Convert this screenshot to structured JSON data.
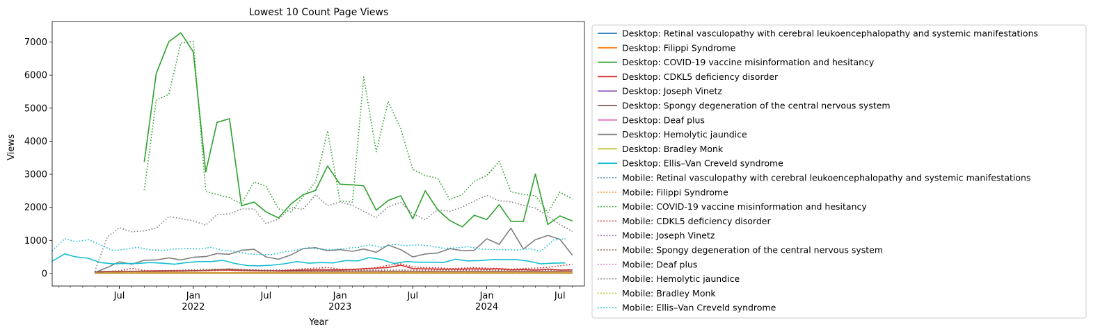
{
  "chart_data": {
    "type": "line",
    "title": "Lowest 10 Count Page Views",
    "xlabel": "Year",
    "ylabel": "Views",
    "ylim": [
      -380,
      7620
    ],
    "xlim": [
      "2021-01-15",
      "2024-08-31"
    ],
    "yticks": [
      0,
      1000,
      2000,
      3000,
      4000,
      5000,
      6000,
      7000
    ],
    "xticks": [
      {
        "date": "2021-07-01",
        "label": "Jul",
        "sub": ""
      },
      {
        "date": "2022-01-01",
        "label": "Jan",
        "sub": "2022"
      },
      {
        "date": "2022-07-01",
        "label": "Jul",
        "sub": ""
      },
      {
        "date": "2023-01-01",
        "label": "Jan",
        "sub": "2023"
      },
      {
        "date": "2023-07-01",
        "label": "Jul",
        "sub": ""
      },
      {
        "date": "2024-01-01",
        "label": "Jan",
        "sub": "2024"
      },
      {
        "date": "2024-07-01",
        "label": "Jul",
        "sub": ""
      }
    ],
    "grid": false,
    "legend_position": "outside-right",
    "series": [
      {
        "name": "Desktop: Retinal vasculopathy with cerebral leukoencephalopathy and systemic manifestations",
        "color": "#1f77b4",
        "style": "solid",
        "start": "2021-05-01",
        "values": [
          10,
          10,
          10,
          10,
          10,
          10,
          10,
          10,
          10,
          10,
          10,
          10,
          10,
          10,
          10,
          10,
          10,
          10,
          10,
          10,
          10,
          10,
          10,
          10,
          10,
          10,
          10,
          10,
          10,
          10,
          10,
          10,
          10,
          10,
          10,
          10,
          10,
          10,
          10,
          10
        ]
      },
      {
        "name": "Desktop: Filippi Syndrome",
        "color": "#ff7f0e",
        "style": "solid",
        "start": "2021-05-01",
        "values": [
          20,
          20,
          20,
          20,
          20,
          20,
          20,
          20,
          20,
          20,
          20,
          20,
          20,
          20,
          20,
          20,
          20,
          20,
          20,
          20,
          20,
          20,
          20,
          20,
          20,
          20,
          20,
          20,
          20,
          20,
          20,
          20,
          20,
          20,
          20,
          20,
          20,
          20,
          20,
          20
        ]
      },
      {
        "name": "Desktop: COVID-19 vaccine misinformation and hesitancy",
        "color": "#2ca02c",
        "style": "solid",
        "start": "2021-09-01",
        "values": [
          3370,
          6050,
          7010,
          7280,
          6700,
          3070,
          4570,
          4680,
          2050,
          2160,
          1860,
          1680,
          2100,
          2380,
          2510,
          3250,
          2700,
          2680,
          2650,
          1910,
          2210,
          2350,
          1650,
          2500,
          1930,
          1600,
          1410,
          1760,
          1630,
          2080,
          1580,
          1570,
          3010,
          1480,
          1740,
          1590
        ]
      },
      {
        "name": "Desktop: CDKL5 deficiency disorder",
        "color": "#d62728",
        "style": "solid",
        "start": "2021-05-01",
        "values": [
          50,
          60,
          60,
          60,
          70,
          80,
          80,
          80,
          80,
          90,
          100,
          100,
          90,
          80,
          80,
          80,
          90,
          100,
          110,
          110,
          110,
          120,
          140,
          160,
          180,
          250,
          150,
          140,
          130,
          130,
          130,
          140,
          130,
          140,
          110,
          120,
          100,
          130,
          100,
          110
        ]
      },
      {
        "name": "Desktop: Joseph Vinetz",
        "color": "#9467bd",
        "style": "solid",
        "start": "2021-05-01",
        "values": [
          10,
          10,
          10,
          10,
          10,
          10,
          10,
          10,
          10,
          10,
          10,
          10,
          10,
          10,
          10,
          10,
          10,
          10,
          10,
          10,
          10,
          10,
          10,
          10,
          10,
          10,
          10,
          10,
          10,
          10,
          10,
          10,
          10,
          10,
          10,
          10,
          10,
          10,
          10,
          10
        ]
      },
      {
        "name": "Desktop: Spongy degeneration of the central nervous system",
        "color": "#8c564b",
        "style": "solid",
        "start": "2021-05-01",
        "values": [
          40,
          50,
          50,
          60,
          60,
          60,
          70,
          70,
          80,
          90,
          110,
          120,
          100,
          90,
          80,
          70,
          70,
          70,
          70,
          70,
          70,
          70,
          70,
          70,
          60,
          60,
          60,
          60,
          60,
          60,
          60,
          60,
          60,
          60,
          60,
          60,
          60,
          60,
          60,
          60
        ]
      },
      {
        "name": "Desktop: Deaf plus",
        "color": "#e377c2",
        "style": "solid",
        "start": "2021-05-01",
        "values": [
          0,
          0,
          0,
          0,
          0,
          0,
          0,
          0,
          0,
          0,
          0,
          0,
          0,
          0,
          0,
          0,
          0,
          0,
          0,
          0,
          0,
          0,
          0,
          0,
          0,
          0,
          0,
          0,
          0,
          0,
          0,
          0,
          0,
          0,
          0,
          0,
          0,
          0,
          0,
          0
        ]
      },
      {
        "name": "Desktop: Hemolytic jaundice",
        "color": "#7f7f7f",
        "style": "solid",
        "start": "2021-05-01",
        "values": [
          30,
          180,
          350,
          280,
          400,
          410,
          470,
          410,
          490,
          510,
          600,
          580,
          700,
          730,
          500,
          430,
          560,
          750,
          780,
          690,
          720,
          670,
          740,
          640,
          860,
          720,
          500,
          590,
          620,
          750,
          690,
          700,
          1050,
          880,
          1370,
          740,
          1020,
          1150,
          1030,
          550
        ]
      },
      {
        "name": "Desktop: Bradley Monk",
        "color": "#bcbd22",
        "style": "solid",
        "start": "2021-05-01",
        "values": [
          10,
          10,
          10,
          10,
          10,
          10,
          10,
          10,
          10,
          10,
          10,
          10,
          10,
          10,
          10,
          10,
          10,
          10,
          10,
          10,
          10,
          10,
          10,
          10,
          10,
          10,
          10,
          10,
          10,
          10,
          10,
          10,
          10,
          10,
          10,
          10,
          10,
          10,
          10,
          10
        ]
      },
      {
        "name": "Desktop: Ellis–Van Creveld syndrome",
        "color": "#17becf",
        "style": "solid",
        "start": "2021-01-15",
        "values": [
          370,
          590,
          500,
          460,
          330,
          290,
          300,
          300,
          330,
          310,
          280,
          330,
          360,
          360,
          400,
          300,
          240,
          230,
          250,
          290,
          360,
          310,
          330,
          320,
          390,
          380,
          480,
          420,
          300,
          360,
          340,
          340,
          330,
          430,
          380,
          390,
          420,
          420,
          420,
          370,
          290,
          310,
          320
        ]
      },
      {
        "name": "Mobile: Retinal vasculopathy with cerebral leukoencephalopathy and systemic manifestations",
        "color": "#1f77b4",
        "style": "dotted",
        "start": "2021-05-01",
        "values": [
          20,
          20,
          20,
          20,
          20,
          20,
          20,
          20,
          20,
          20,
          20,
          20,
          20,
          20,
          20,
          20,
          20,
          20,
          20,
          20,
          20,
          20,
          20,
          20,
          20,
          20,
          20,
          20,
          20,
          20,
          20,
          20,
          20,
          20,
          20,
          20,
          20,
          20,
          20,
          20
        ]
      },
      {
        "name": "Mobile: Filippi Syndrome",
        "color": "#ff7f0e",
        "style": "dotted",
        "start": "2021-05-01",
        "values": [
          50,
          40,
          40,
          30,
          40,
          30,
          40,
          30,
          40,
          30,
          40,
          30,
          40,
          30,
          40,
          30,
          40,
          30,
          40,
          30,
          40,
          30,
          40,
          30,
          40,
          30,
          40,
          30,
          40,
          30,
          40,
          30,
          40,
          30,
          40,
          30,
          40,
          30,
          40,
          30
        ]
      },
      {
        "name": "Mobile: COVID-19 vaccine misinformation and hesitancy",
        "color": "#2ca02c",
        "style": "dotted",
        "start": "2021-09-01",
        "values": [
          2520,
          5240,
          5420,
          6970,
          7020,
          2480,
          2390,
          2290,
          2100,
          2770,
          2640,
          1950,
          1860,
          2320,
          2760,
          4310,
          2190,
          2160,
          5940,
          3680,
          5200,
          4380,
          3150,
          2960,
          2880,
          2230,
          2390,
          2790,
          2960,
          3390,
          2470,
          2390,
          2350,
          1840,
          2460,
          2250
        ]
      },
      {
        "name": "Mobile: CDKL5 deficiency disorder",
        "color": "#d62728",
        "style": "dotted",
        "start": "2021-05-01",
        "values": [
          40,
          60,
          80,
          160,
          90,
          70,
          60,
          70,
          90,
          80,
          100,
          140,
          110,
          100,
          90,
          80,
          110,
          140,
          160,
          180,
          130,
          120,
          150,
          170,
          250,
          290,
          200,
          180,
          170,
          150,
          160,
          180,
          160,
          150,
          130,
          150,
          160,
          190,
          230,
          280
        ]
      },
      {
        "name": "Mobile: Joseph Vinetz",
        "color": "#9467bd",
        "style": "dotted",
        "start": "2021-05-01",
        "values": [
          10,
          10,
          10,
          10,
          10,
          10,
          10,
          10,
          10,
          10,
          10,
          10,
          10,
          10,
          10,
          10,
          10,
          10,
          10,
          10,
          10,
          10,
          10,
          10,
          10,
          10,
          10,
          10,
          10,
          10,
          10,
          10,
          10,
          10,
          10,
          10,
          10,
          10,
          10,
          10
        ]
      },
      {
        "name": "Mobile: Spongy degeneration of the central nervous system",
        "color": "#8c564b",
        "style": "dotted",
        "start": "2021-05-01",
        "values": [
          60,
          60,
          70,
          70,
          80,
          80,
          90,
          100,
          110,
          120,
          130,
          130,
          120,
          110,
          100,
          100,
          100,
          100,
          100,
          100,
          100,
          100,
          100,
          100,
          100,
          100,
          100,
          100,
          100,
          100,
          100,
          100,
          100,
          100,
          100,
          100,
          100,
          100,
          100,
          100
        ]
      },
      {
        "name": "Mobile: Deaf plus",
        "color": "#e377c2",
        "style": "dotted",
        "start": "2021-05-01",
        "values": [
          10,
          10,
          10,
          10,
          10,
          10,
          10,
          10,
          10,
          10,
          10,
          10,
          10,
          10,
          10,
          10,
          10,
          10,
          10,
          10,
          10,
          10,
          10,
          10,
          10,
          10,
          10,
          10,
          10,
          10,
          10,
          10,
          10,
          10,
          10,
          10,
          10,
          10,
          10,
          10
        ]
      },
      {
        "name": "Mobile: Hemolytic jaundice",
        "color": "#7f7f7f",
        "style": "dotted",
        "start": "2021-05-01",
        "values": [
          60,
          1100,
          1380,
          1260,
          1290,
          1370,
          1720,
          1660,
          1590,
          1460,
          1780,
          1800,
          1950,
          1950,
          1510,
          1640,
          1990,
          1940,
          2380,
          2050,
          2160,
          2060,
          1880,
          1690,
          2020,
          2150,
          1800,
          1630,
          1930,
          1880,
          2010,
          2190,
          2360,
          2200,
          2170,
          2060,
          1980,
          1730,
          1480,
          1270
        ]
      },
      {
        "name": "Mobile: Bradley Monk",
        "color": "#bcbd22",
        "style": "dotted",
        "start": "2021-05-01",
        "values": [
          10,
          10,
          10,
          10,
          10,
          10,
          10,
          10,
          10,
          10,
          10,
          10,
          10,
          10,
          10,
          10,
          10,
          10,
          10,
          10,
          10,
          10,
          10,
          10,
          10,
          10,
          10,
          10,
          10,
          10,
          10,
          10,
          10,
          10,
          10,
          10,
          10,
          10,
          10,
          10
        ]
      },
      {
        "name": "Mobile: Ellis–Van Creveld syndrome",
        "color": "#17becf",
        "style": "dotted",
        "start": "2021-01-15",
        "values": [
          690,
          1050,
          960,
          1020,
          870,
          690,
          730,
          790,
          720,
          690,
          740,
          760,
          740,
          790,
          700,
          670,
          590,
          570,
          570,
          650,
          710,
          780,
          730,
          720,
          760,
          790,
          870,
          790,
          880,
          840,
          870,
          830,
          760,
          770,
          810,
          740,
          720,
          720,
          710,
          750,
          670,
          1010,
          1050
        ]
      }
    ]
  }
}
